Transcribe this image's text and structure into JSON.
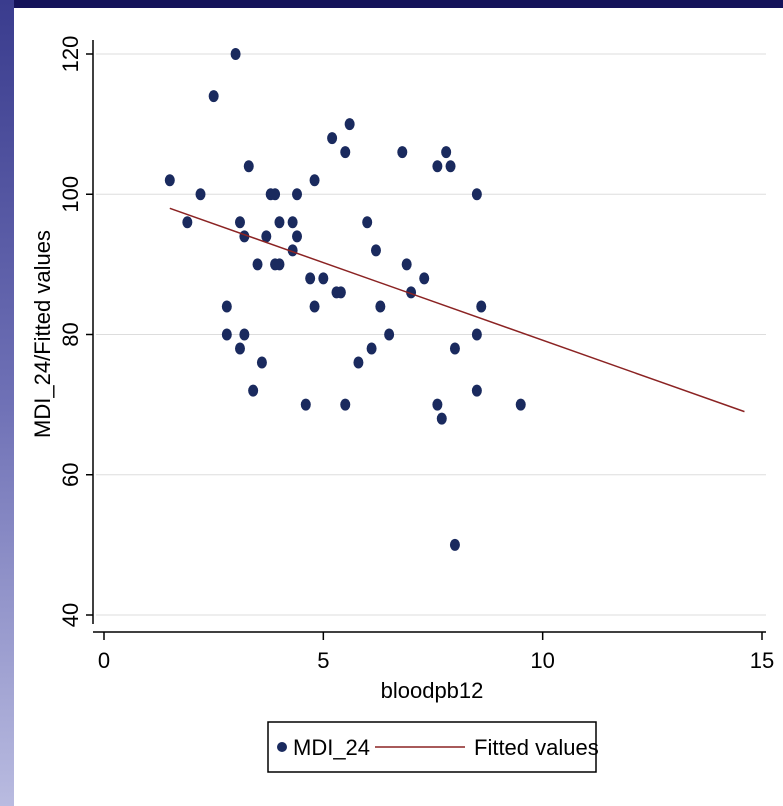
{
  "window": {
    "title": ""
  },
  "chart_data": {
    "type": "scatter",
    "title": "",
    "xlabel": "bloodpb12",
    "ylabel": "MDI_24/Fitted values",
    "xlim": [
      0,
      15
    ],
    "ylim": [
      40,
      120
    ],
    "xticks": [
      0,
      5,
      10,
      15
    ],
    "yticks": [
      40,
      60,
      80,
      100,
      120
    ],
    "grid": "horizontal",
    "legend_position": "bottom-center",
    "colors": {
      "points": "#1a2a5e",
      "fit_line": "#8b2323",
      "grid": "#dddddd"
    },
    "series": [
      {
        "name": "MDI_24",
        "kind": "markers",
        "points": [
          [
            1.5,
            102
          ],
          [
            1.9,
            96
          ],
          [
            2.2,
            100
          ],
          [
            2.5,
            114
          ],
          [
            2.8,
            80
          ],
          [
            2.8,
            84
          ],
          [
            3.0,
            120
          ],
          [
            3.1,
            96
          ],
          [
            3.1,
            78
          ],
          [
            3.2,
            94
          ],
          [
            3.3,
            104
          ],
          [
            3.2,
            80
          ],
          [
            3.5,
            90
          ],
          [
            3.4,
            72
          ],
          [
            3.6,
            76
          ],
          [
            3.8,
            100
          ],
          [
            3.9,
            100
          ],
          [
            3.7,
            94
          ],
          [
            3.9,
            90
          ],
          [
            4.0,
            90
          ],
          [
            4.0,
            96
          ],
          [
            4.3,
            96
          ],
          [
            4.3,
            92
          ],
          [
            4.4,
            94
          ],
          [
            4.4,
            100
          ],
          [
            4.6,
            70
          ],
          [
            4.7,
            88
          ],
          [
            4.8,
            102
          ],
          [
            4.8,
            84
          ],
          [
            5.0,
            88
          ],
          [
            5.2,
            108
          ],
          [
            5.3,
            86
          ],
          [
            5.4,
            86
          ],
          [
            5.5,
            106
          ],
          [
            5.5,
            70
          ],
          [
            5.6,
            110
          ],
          [
            5.8,
            76
          ],
          [
            6.0,
            96
          ],
          [
            6.1,
            78
          ],
          [
            6.2,
            92
          ],
          [
            6.3,
            84
          ],
          [
            6.5,
            80
          ],
          [
            6.8,
            106
          ],
          [
            6.9,
            90
          ],
          [
            7.0,
            86
          ],
          [
            7.3,
            88
          ],
          [
            7.6,
            104
          ],
          [
            7.6,
            70
          ],
          [
            7.7,
            68
          ],
          [
            7.8,
            106
          ],
          [
            7.9,
            104
          ],
          [
            8.0,
            78
          ],
          [
            8.0,
            50
          ],
          [
            8.5,
            100
          ],
          [
            8.5,
            80
          ],
          [
            8.5,
            72
          ],
          [
            8.6,
            84
          ],
          [
            9.5,
            70
          ]
        ]
      },
      {
        "name": "Fitted values",
        "kind": "line",
        "points": [
          [
            1.5,
            98
          ],
          [
            14.6,
            69
          ]
        ]
      }
    ]
  }
}
